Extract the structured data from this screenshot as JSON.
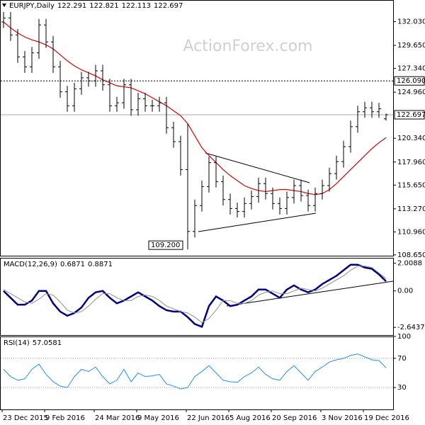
{
  "chart_data": [
    {
      "type": "ohlc",
      "title": "EURJPY,Daily",
      "header_values": [
        122.291,
        122.821,
        122.113,
        122.697
      ],
      "watermark": "ActionForex.com",
      "categories": [
        "23 Dec 2015",
        null,
        null,
        null,
        null,
        null,
        "9 Feb 2016",
        null,
        null,
        null,
        null,
        null,
        null,
        "24 Mar 2016",
        null,
        null,
        null,
        null,
        null,
        "9 May 2016",
        null,
        null,
        null,
        null,
        null,
        null,
        "22 Jun 2016",
        null,
        null,
        null,
        null,
        null,
        "5 Aug 2016",
        null,
        null,
        null,
        null,
        null,
        "20 Sep 2016",
        null,
        null,
        null,
        null,
        null,
        null,
        "3 Nov 2016",
        null,
        null,
        null,
        null,
        null,
        "19 Dec 2016",
        null,
        null,
        null
      ],
      "open": [
        132.0,
        132.4,
        130.7,
        128.5,
        127.5,
        128.9,
        131.7,
        130.0,
        127.5,
        125.0,
        123.6,
        125.3,
        126.4,
        126.1,
        127.1,
        125.7,
        123.6,
        123.9,
        125.7,
        123.2,
        124.3,
        123.6,
        123.6,
        123.9,
        121.4,
        120.0,
        117.2,
        111.0,
        113.6,
        115.5,
        117.9,
        116.0,
        114.2,
        113.3,
        113.0,
        113.8,
        114.5,
        115.8,
        114.8,
        113.8,
        113.3,
        114.4,
        115.6,
        114.6,
        113.6,
        114.8,
        115.6,
        116.8,
        118.0,
        119.5,
        121.5,
        123.0,
        123.4,
        123.0,
        122.291
      ],
      "high": [
        133.0,
        133.0,
        131.3,
        129.1,
        129.5,
        132.3,
        132.3,
        130.6,
        128.1,
        125.6,
        125.9,
        127.0,
        127.0,
        127.7,
        127.7,
        126.3,
        124.5,
        126.3,
        126.3,
        124.9,
        124.9,
        124.2,
        124.5,
        124.5,
        122.0,
        120.6,
        121.8,
        114.2,
        116.1,
        118.5,
        118.5,
        116.6,
        114.8,
        113.9,
        114.4,
        115.1,
        116.4,
        116.4,
        115.4,
        114.4,
        115.0,
        116.2,
        116.2,
        115.2,
        115.4,
        116.2,
        117.4,
        118.6,
        120.1,
        122.1,
        123.6,
        124.0,
        124.0,
        123.9,
        122.821
      ],
      "low": [
        131.4,
        130.1,
        127.9,
        126.9,
        126.9,
        128.3,
        129.4,
        126.9,
        124.4,
        123.0,
        123.0,
        124.7,
        125.5,
        125.5,
        125.1,
        123.0,
        123.0,
        123.3,
        122.6,
        122.6,
        123.0,
        123.0,
        123.0,
        120.8,
        119.4,
        116.6,
        109.2,
        110.4,
        113.0,
        114.9,
        115.4,
        113.6,
        112.7,
        112.4,
        112.4,
        113.2,
        113.9,
        114.2,
        113.2,
        112.7,
        112.7,
        113.8,
        114.0,
        113.0,
        113.0,
        114.2,
        115.0,
        116.2,
        117.4,
        118.9,
        120.9,
        122.4,
        122.4,
        122.4,
        122.113
      ],
      "close": [
        132.4,
        130.7,
        128.5,
        127.5,
        128.9,
        131.7,
        130.0,
        127.5,
        125.0,
        123.6,
        125.3,
        126.4,
        126.1,
        127.1,
        125.7,
        123.6,
        123.9,
        125.7,
        123.2,
        124.3,
        123.6,
        123.6,
        123.9,
        121.4,
        120.0,
        117.2,
        111.0,
        113.6,
        115.5,
        117.9,
        116.0,
        114.2,
        113.3,
        113.0,
        113.8,
        114.5,
        115.8,
        114.8,
        113.8,
        113.3,
        114.4,
        115.6,
        114.6,
        113.6,
        114.8,
        115.6,
        116.8,
        118.0,
        119.5,
        121.5,
        123.0,
        123.4,
        123.0,
        123.3,
        122.697
      ],
      "color": "#000000",
      "moving_average": {
        "color": "#e00000",
        "values": [
          132.0,
          131.4,
          130.9,
          130.5,
          130.2,
          130.0,
          129.7,
          129.3,
          128.7,
          128.1,
          127.6,
          127.2,
          126.9,
          126.6,
          126.2,
          125.9,
          125.6,
          125.5,
          125.4,
          125.1,
          124.8,
          124.4,
          124.0,
          123.6,
          123.1,
          122.6,
          121.8,
          120.6,
          119.4,
          118.6,
          117.9,
          117.2,
          116.6,
          116.1,
          115.6,
          115.3,
          115.1,
          115.0,
          115.1,
          115.2,
          115.2,
          115.1,
          115.0,
          114.8,
          114.7,
          114.8,
          115.2,
          115.8,
          116.5,
          117.2,
          117.9,
          118.6,
          119.3,
          119.9,
          120.4
        ]
      },
      "ylim": [
        108.5,
        134.2
      ],
      "yticks": [
        {
          "value": 132.03,
          "label": "132.030"
        },
        {
          "value": 129.65,
          "label": "129.650"
        },
        {
          "value": 127.34,
          "label": "127.340"
        },
        {
          "value": 124.96,
          "label": "124.960"
        },
        {
          "value": 120.34,
          "label": "120.340"
        },
        {
          "value": 117.96,
          "label": "117.960"
        },
        {
          "value": 115.65,
          "label": "115.650"
        },
        {
          "value": 113.27,
          "label": "113.270"
        },
        {
          "value": 110.96,
          "label": "110.960"
        },
        {
          "value": 108.65,
          "label": "108.650"
        }
      ],
      "reference_line": {
        "value": 126.09,
        "label": "126.090"
      },
      "current_price": 122.697,
      "low_annotation": {
        "value": 109.2,
        "label": "109.200"
      }
    },
    {
      "type": "line",
      "title": "MACD(12,26,9)",
      "header_values": [
        0.6871,
        0.8871
      ],
      "series": [
        {
          "color": "#000080",
          "values": [
            0.0,
            -0.5,
            -1.0,
            -1.0,
            -0.7,
            0.0,
            0.0,
            -0.9,
            -1.5,
            -1.8,
            -1.6,
            -1.2,
            -0.5,
            -0.1,
            0.0,
            -0.5,
            -0.9,
            -0.7,
            -0.4,
            -0.1,
            -0.4,
            -0.7,
            -1.1,
            -1.4,
            -1.5,
            -1.5,
            -1.9,
            -2.4,
            -2.6,
            -1.1,
            -0.4,
            -0.7,
            -1.1,
            -1.0,
            -0.7,
            -0.4,
            0.1,
            0.1,
            -0.2,
            -0.5,
            0.1,
            0.4,
            0.1,
            -0.1,
            0.1,
            0.5,
            0.8,
            1.1,
            1.5,
            1.9,
            1.9,
            1.7,
            1.6,
            1.2,
            0.7
          ]
        },
        {
          "color": "#909090",
          "values": [
            0.1,
            -0.2,
            -0.5,
            -0.8,
            -0.9,
            -0.6,
            -0.2,
            -0.3,
            -0.8,
            -1.4,
            -1.6,
            -1.5,
            -1.1,
            -0.6,
            -0.2,
            -0.2,
            -0.5,
            -0.7,
            -0.7,
            -0.4,
            -0.3,
            -0.4,
            -0.7,
            -1.1,
            -1.3,
            -1.5,
            -1.6,
            -1.9,
            -2.3,
            -2.0,
            -1.4,
            -0.7,
            -0.7,
            -0.9,
            -0.9,
            -0.7,
            -0.3,
            -0.1,
            0.0,
            -0.2,
            -0.2,
            0.0,
            0.2,
            0.1,
            0.0,
            0.2,
            0.5,
            0.8,
            1.1,
            1.5,
            1.8,
            1.8,
            1.7,
            1.3,
            0.9
          ]
        }
      ],
      "ylim": [
        -3.2,
        2.4
      ],
      "yticks": [
        2.0088,
        {
          "value": 0,
          "label": "0.00"
        },
        -2.6437
      ]
    },
    {
      "type": "line",
      "title": "RSI(14)",
      "header_values": [
        57.0581
      ],
      "series": [
        {
          "color": "#1e90ff",
          "values": [
            55,
            45,
            40,
            42,
            55,
            62,
            48,
            38,
            32,
            30,
            45,
            55,
            52,
            58,
            45,
            35,
            40,
            55,
            38,
            50,
            45,
            46,
            48,
            35,
            32,
            28,
            30,
            45,
            52,
            60,
            50,
            40,
            38,
            37,
            45,
            50,
            58,
            48,
            42,
            40,
            52,
            60,
            50,
            40,
            52,
            58,
            65,
            68,
            70,
            74,
            76,
            72,
            68,
            67,
            57.0581
          ]
        }
      ],
      "ylim": [
        0,
        100
      ],
      "yticks": [
        100,
        70,
        30
      ],
      "grid": true
    }
  ]
}
